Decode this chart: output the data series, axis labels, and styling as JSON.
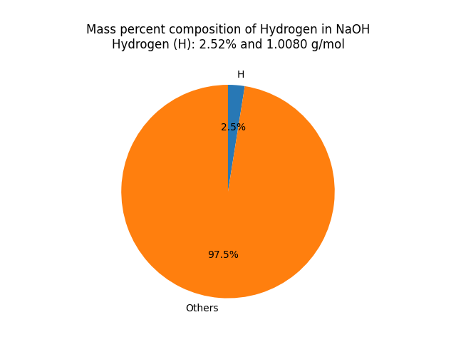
{
  "title_line1": "Mass percent composition of Hydrogen in NaOH",
  "title_line2": "Hydrogen (H): 2.52% and 1.0080 g/mol",
  "slices": [
    2.52,
    97.48
  ],
  "labels": [
    "H",
    "Others"
  ],
  "colors": [
    "#2878b5",
    "#ff7f0e"
  ],
  "startangle": 90,
  "background_color": "#ffffff",
  "title_fontsize": 12,
  "label_fontsize": 10,
  "autopct_fontsize": 10
}
